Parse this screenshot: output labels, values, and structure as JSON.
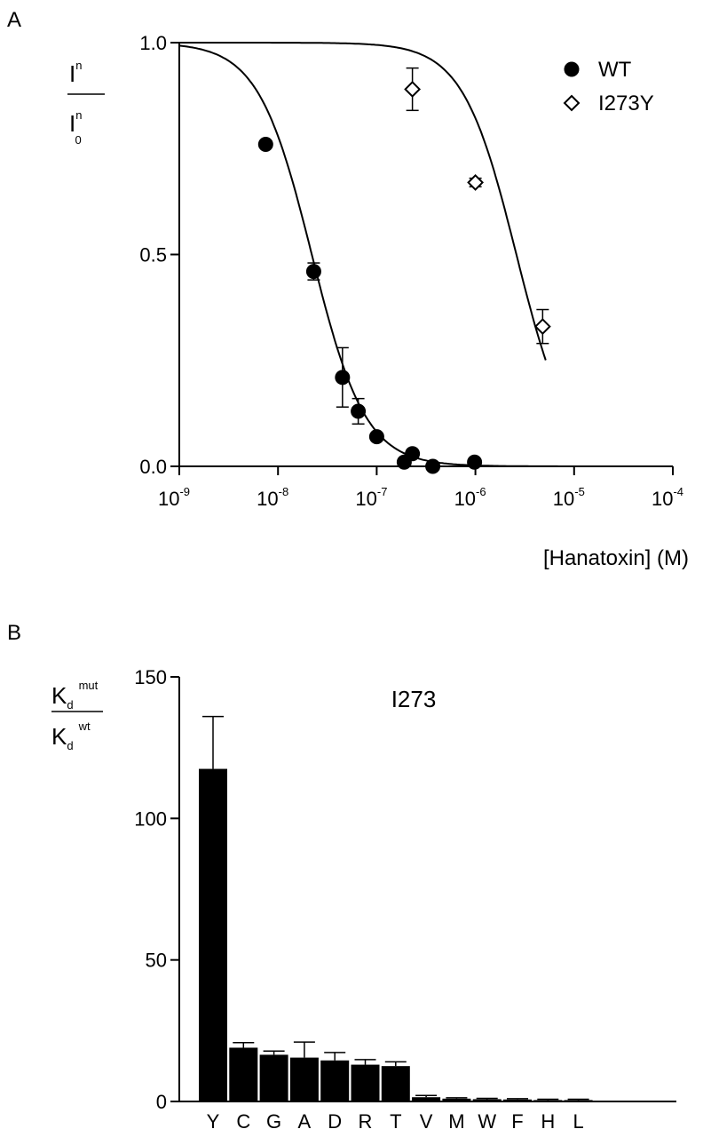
{
  "chart_data": [
    {
      "panel": "A",
      "type": "scatter",
      "y_label": {
        "numerator": "I",
        "numerator_sup": "n",
        "denominator": "I",
        "denominator_sup": "n",
        "denominator_sub": "0"
      },
      "xlabel": "[Hanatoxin] (M)",
      "x_scale": "log",
      "xlim": [
        1e-09,
        0.0001
      ],
      "ylim": [
        0,
        1
      ],
      "x_ticks": [
        {
          "base": "10",
          "exp": "-9"
        },
        {
          "base": "10",
          "exp": "-8"
        },
        {
          "base": "10",
          "exp": "-7"
        },
        {
          "base": "10",
          "exp": "-6"
        },
        {
          "base": "10",
          "exp": "-5"
        },
        {
          "base": "10",
          "exp": "-4"
        }
      ],
      "y_ticks": [
        "0.0",
        "0.5",
        "1.0"
      ],
      "legend_position": "top-right",
      "series": [
        {
          "name": "WT",
          "marker": "filled-circle",
          "points": [
            {
              "x": 7.5e-09,
              "y": 0.76,
              "err": 0
            },
            {
              "x": 2.3e-08,
              "y": 0.46,
              "err": 0.02
            },
            {
              "x": 4.5e-08,
              "y": 0.21,
              "err": 0.07
            },
            {
              "x": 6.5e-08,
              "y": 0.13,
              "err": 0.03
            },
            {
              "x": 1e-07,
              "y": 0.07,
              "err": 0
            },
            {
              "x": 1.9e-07,
              "y": 0.01,
              "err": 0
            },
            {
              "x": 2.3e-07,
              "y": 0.03,
              "err": 0
            },
            {
              "x": 3.7e-07,
              "y": 0.0,
              "err": 0
            },
            {
              "x": 9.8e-07,
              "y": 0.01,
              "err": 0
            }
          ],
          "fit": {
            "kd": 2.2e-08,
            "hill": 1.6
          }
        },
        {
          "name": "I273Y",
          "marker": "open-diamond",
          "points": [
            {
              "x": 2.3e-07,
              "y": 0.89,
              "err": 0.05
            },
            {
              "x": 1e-06,
              "y": 0.67,
              "err": 0.01
            },
            {
              "x": 4.8e-06,
              "y": 0.33,
              "err": 0.04
            }
          ],
          "fit": {
            "kd": 2.6e-06,
            "hill": 1.6
          }
        }
      ]
    },
    {
      "panel": "B",
      "type": "bar",
      "series_label": "I273",
      "y_label": {
        "numerator": "K",
        "numerator_sub": "d",
        "numerator_sup": "mut",
        "denominator": "K",
        "denominator_sub": "d",
        "denominator_sup": "wt"
      },
      "ylim": [
        0,
        150
      ],
      "y_ticks": [
        "0",
        "50",
        "100",
        "150"
      ],
      "categories": [
        "Y",
        "C",
        "G",
        "A",
        "D",
        "R",
        "T",
        "V",
        "M",
        "W",
        "F",
        "H",
        "L"
      ],
      "values": [
        117.5,
        19,
        16.5,
        15.5,
        14.5,
        13,
        12.5,
        1.5,
        1,
        0.8,
        0.7,
        0.5,
        0.5
      ],
      "errors": [
        18.5,
        1.8,
        1.3,
        5.5,
        2.8,
        1.8,
        1.5,
        0.6,
        0.3,
        0.3,
        0.3,
        0.3,
        0.3
      ],
      "bar_color": "#000000"
    }
  ]
}
